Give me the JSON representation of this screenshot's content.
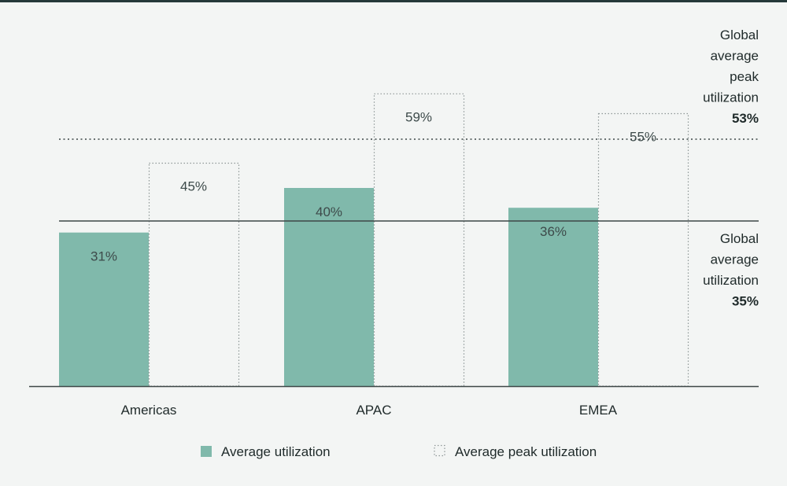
{
  "chart_data": {
    "type": "bar",
    "categories": [
      "Americas",
      "APAC",
      "EMEA"
    ],
    "series": [
      {
        "name": "Average utilization",
        "values": [
          31,
          40,
          36
        ],
        "labels": [
          "31%",
          "40%",
          "36%"
        ],
        "style": "filled"
      },
      {
        "name": "Average peak utilization",
        "values": [
          45,
          59,
          55
        ],
        "labels": [
          "45%",
          "59%",
          "55%"
        ],
        "style": "dotted-outline"
      }
    ],
    "reference_lines": [
      {
        "id": "peak",
        "label_lines": [
          "Global",
          "average",
          "peak",
          "utilization"
        ],
        "value_label": "53%",
        "value": 53,
        "style": "dotted"
      },
      {
        "id": "avg",
        "label_lines": [
          "Global",
          "average",
          "utilization"
        ],
        "value_label": "35%",
        "value": 35,
        "style": "solid"
      }
    ],
    "ylim": [
      0,
      65
    ],
    "grid": false,
    "legend": {
      "position": "bottom",
      "entries": [
        "Average utilization",
        "Average peak utilization"
      ]
    },
    "colors": {
      "fill": "#80b9ab",
      "outline": "#8e9696",
      "ref_line": "#3d4747",
      "axis": "#3d4747",
      "top_border": "#25393a"
    }
  }
}
